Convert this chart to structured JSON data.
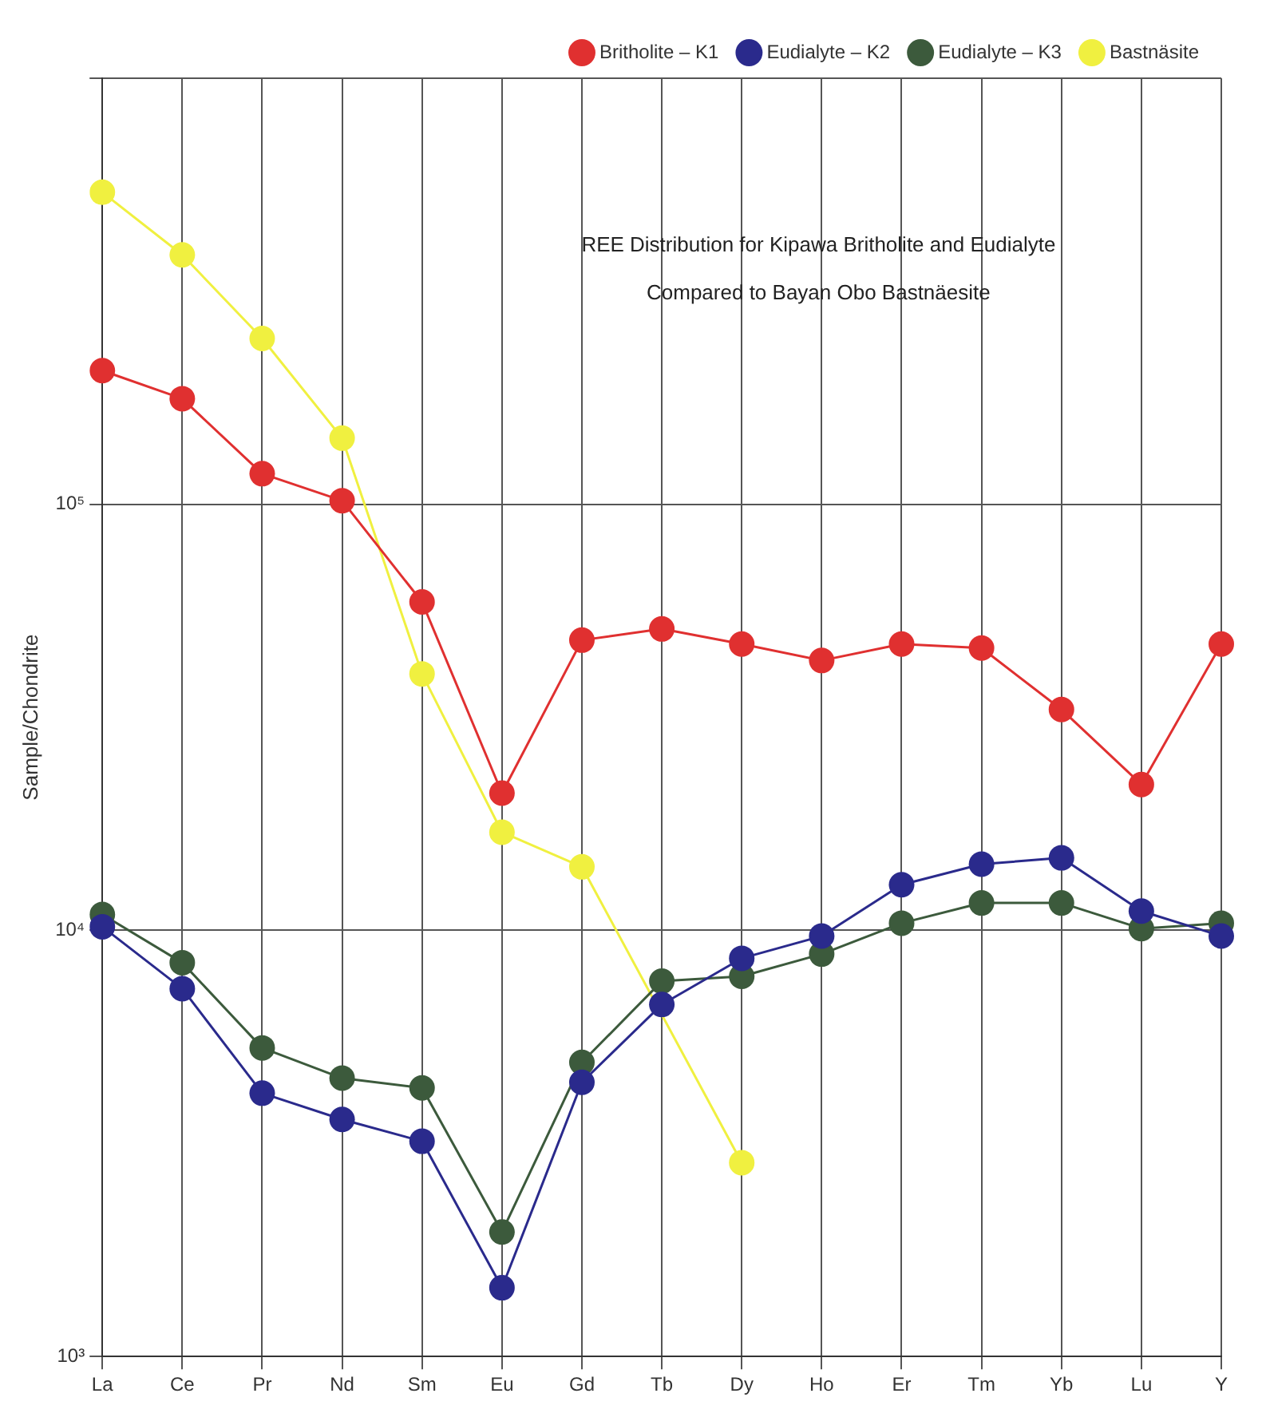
{
  "chart_data": {
    "type": "line",
    "title": "REE Distribution for Kipawa Britholite and Eudialyte",
    "subtitle": "Compared to Bayan Obo Bastnäesite",
    "ylabel": "Sample/Chondrite",
    "categories": [
      "La",
      "Ce",
      "Pr",
      "Nd",
      "Sm",
      "Eu",
      "Gd",
      "Tb",
      "Dy",
      "Ho",
      "Er",
      "Tm",
      "Yb",
      "Lu",
      "Y"
    ],
    "series": [
      {
        "name": "Britholite – K1",
        "color": "#e03030",
        "values": [
          206000,
          177000,
          118000,
          102000,
          59000,
          21000,
          48000,
          51000,
          47000,
          43000,
          47000,
          46000,
          33000,
          22000,
          47000
        ]
      },
      {
        "name": "Eudialyte – K2",
        "color": "#2a2a8c",
        "values": [
          10200,
          7300,
          4150,
          3600,
          3200,
          1450,
          4400,
          6700,
          8600,
          9700,
          12800,
          14300,
          14800,
          11100,
          9700
        ]
      },
      {
        "name": "Eudialyte – K3",
        "color": "#3c5a3c",
        "values": [
          10900,
          8400,
          5300,
          4500,
          4270,
          1960,
          4900,
          7600,
          7800,
          8800,
          10400,
          11600,
          11600,
          10100,
          10400
        ]
      },
      {
        "name": "Bastnäsite",
        "color": "#f0f040",
        "values": [
          540000,
          385000,
          245000,
          143000,
          40000,
          17000,
          14100,
          null,
          2850,
          null,
          null,
          null,
          null,
          null,
          null
        ]
      }
    ],
    "log": "y",
    "ylim": [
      1000,
      1000000
    ],
    "yticks": [
      {
        "value": 1000,
        "label": "10³"
      },
      {
        "value": 10000,
        "label": "10⁴"
      },
      {
        "value": 100000,
        "label": "10⁵"
      },
      {
        "value": 1000000,
        "label": null
      }
    ],
    "grid": true,
    "legend": "top right",
    "marker": "circle",
    "line_style": "solid"
  }
}
